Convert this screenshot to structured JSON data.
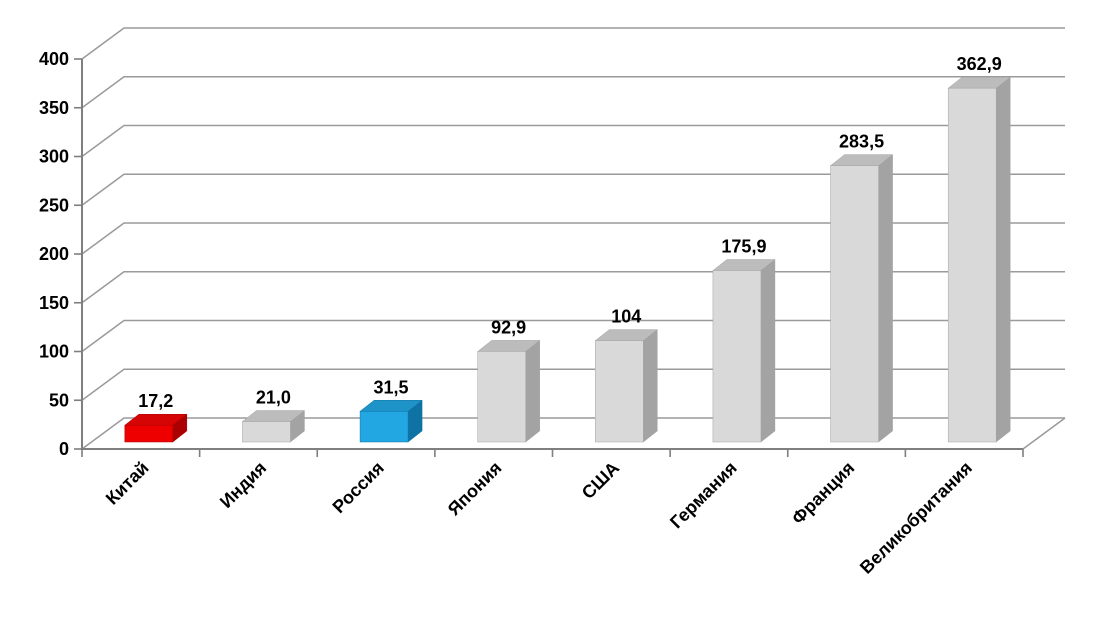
{
  "chart_data": {
    "type": "bar",
    "style": "3d-column",
    "title": "",
    "categories": [
      "Китай",
      "Индия",
      "Россия",
      "Япония",
      "США",
      "Германия",
      "Франция",
      "Великобритания"
    ],
    "values": [
      17.2,
      21.0,
      31.5,
      92.9,
      104,
      175.9,
      283.5,
      362.9
    ],
    "value_labels": [
      "17,2",
      "21,0",
      "31,5",
      "92,9",
      "104",
      "175,9",
      "283,5",
      "362,9"
    ],
    "ytick_labels": [
      "0",
      "50",
      "100",
      "150",
      "200",
      "250",
      "300",
      "350",
      "400"
    ],
    "ylim": [
      0,
      400
    ],
    "ytick_step": 50,
    "grid": true,
    "legend_position": "none",
    "bar_colors": [
      {
        "front": "#ee0000",
        "top": "#d60505",
        "side": "#aa0000"
      },
      {
        "front": "#d9d9d9",
        "top": "#bcbcbc",
        "side": "#a3a3a3"
      },
      {
        "front": "#22a7e2",
        "top": "#1e93c7",
        "side": "#0f72a4"
      },
      {
        "front": "#d9d9d9",
        "top": "#bcbcbc",
        "side": "#a3a3a3"
      },
      {
        "front": "#d9d9d9",
        "top": "#bcbcbc",
        "side": "#a3a3a3"
      },
      {
        "front": "#d9d9d9",
        "top": "#bcbcbc",
        "side": "#a3a3a3"
      },
      {
        "front": "#d9d9d9",
        "top": "#bcbcbc",
        "side": "#a3a3a3"
      },
      {
        "front": "#d9d9d9",
        "top": "#bcbcbc",
        "side": "#a3a3a3"
      }
    ],
    "colors": {
      "axis": "#7f7f7f",
      "grid": "#9a9a9a",
      "text": "#000000",
      "background": "#ffffff"
    }
  }
}
